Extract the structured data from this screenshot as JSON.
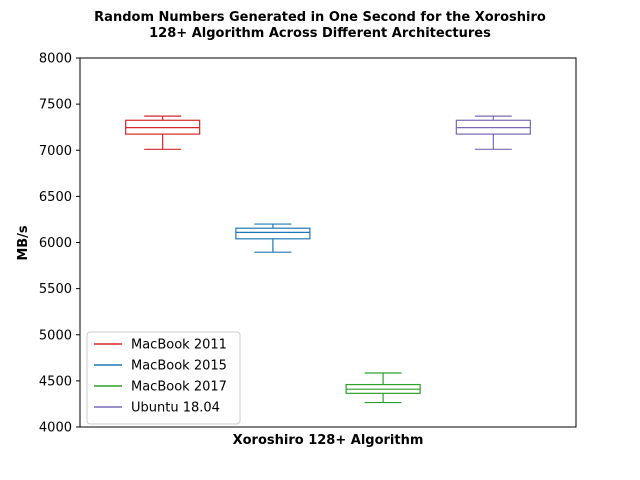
{
  "chart_data": {
    "type": "box",
    "title": "Random Numbers Generated in One Second for the Xoroshiro\n128+ Algorithm Across Different Architectures",
    "xlabel": "Xoroshiro 128+ Algorithm",
    "ylabel": "MB/s",
    "ylim": [
      4000,
      8000
    ],
    "yticks": [
      4000,
      4500,
      5000,
      5500,
      6000,
      6500,
      7000,
      7500,
      8000
    ],
    "legend_position": "lower-left",
    "grid": false,
    "series": [
      {
        "name": "MacBook 2011",
        "color": "#d62728",
        "stats": {
          "whislo": 7010,
          "q1": 7175,
          "med": 7245,
          "q3": 7325,
          "whishi": 7370
        }
      },
      {
        "name": "MacBook 2015",
        "color": "#1f77b4",
        "stats": {
          "whislo": 5895,
          "q1": 6040,
          "med": 6110,
          "q3": 6155,
          "whishi": 6200
        }
      },
      {
        "name": "MacBook 2017",
        "color": "#2ca02c",
        "stats": {
          "whislo": 4265,
          "q1": 4365,
          "med": 4410,
          "q3": 4460,
          "whishi": 4585
        }
      },
      {
        "name": "Ubuntu 18.04",
        "color": "#7b68b5",
        "stats": {
          "whislo": 7010,
          "q1": 7175,
          "med": 7245,
          "q3": 7325,
          "whishi": 7370
        }
      }
    ]
  }
}
